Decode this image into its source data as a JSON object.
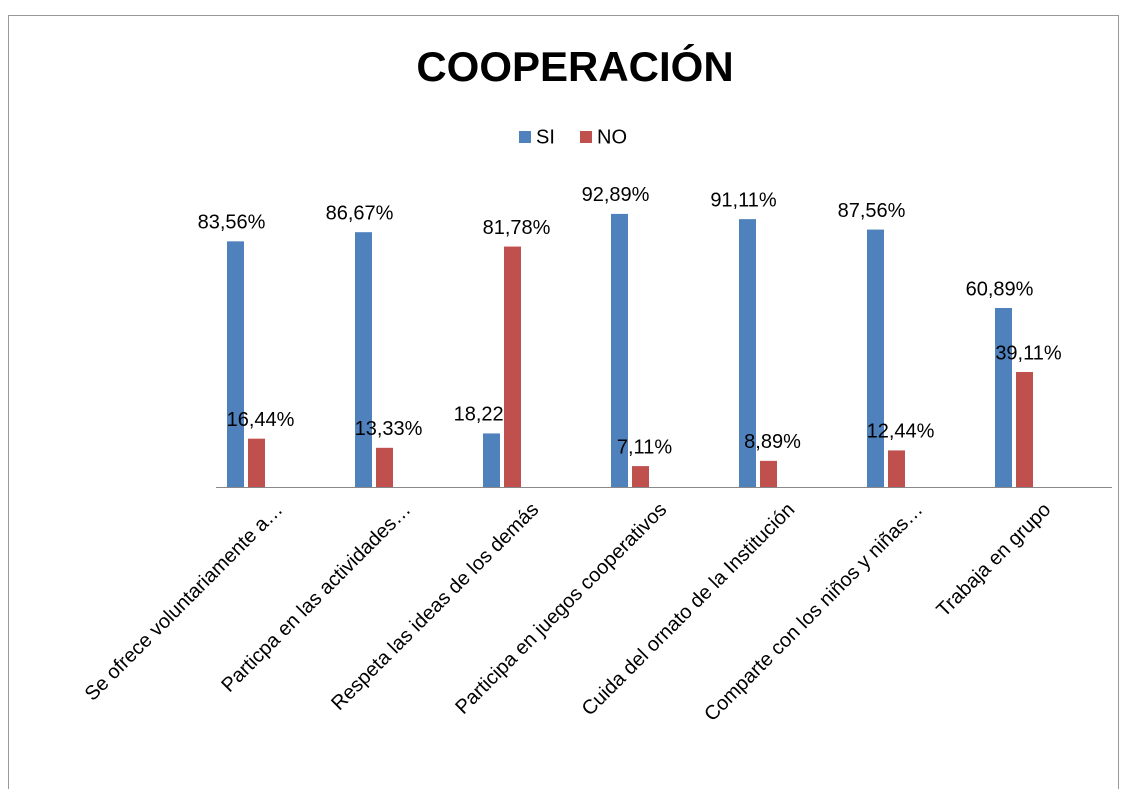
{
  "chart_data": {
    "type": "bar",
    "title": "COOPERACIÓN",
    "categories": [
      "Se ofrece voluntariamente a…",
      "Particpa en las actividades…",
      "Respeta las ideas de los demás",
      "Participa en juegos cooperativos",
      "Cuida del ornato de la Institución",
      "Comparte con los niños y niñas…",
      "Trabaja en grupo"
    ],
    "series": [
      {
        "name": "SI",
        "color": "#4f81bd",
        "values": [
          83.56,
          86.67,
          18.22,
          92.89,
          91.11,
          87.56,
          60.89
        ],
        "value_labels": [
          "83,56%",
          "86,67%",
          "18,22%",
          "92,89%",
          "91,11%",
          "87,56%",
          "60,89%"
        ]
      },
      {
        "name": "NO",
        "color": "#c0504d",
        "values": [
          16.44,
          13.33,
          81.78,
          7.11,
          8.89,
          12.44,
          39.11
        ],
        "value_labels": [
          "16,44%",
          "13,33%",
          "81,78%",
          "7,11%",
          "8,89%",
          "12,44%",
          "39,11%"
        ]
      }
    ],
    "ylim": [
      0,
      100
    ]
  }
}
